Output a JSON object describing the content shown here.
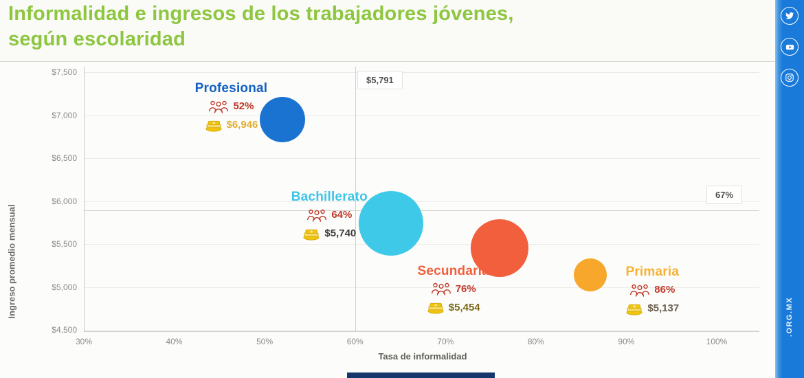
{
  "page": {
    "title_line1": "Informalidad e ingresos de los trabajadores jóvenes,",
    "title_line2": "según escolaridad",
    "title_color": "#8dc63f"
  },
  "chart_data": {
    "type": "scatter",
    "title": "Informalidad e ingresos de los trabajadores jóvenes, según escolaridad",
    "xlabel": "Tasa de informalidad",
    "ylabel": "Ingreso promedio mensual",
    "xlim": [
      30,
      100
    ],
    "ylim": [
      4500,
      7500
    ],
    "x_ticks": [
      "30%",
      "40%",
      "50%",
      "60%",
      "70%",
      "80%",
      "90%",
      "100%"
    ],
    "y_ticks": [
      "$7,500",
      "$7,000",
      "$6,500",
      "$6,000",
      "$5,500",
      "$5,000",
      "$4,500"
    ],
    "grid": "horizontal",
    "legend": "none",
    "series": [
      {
        "name": "Profesional",
        "informality_pct": 52,
        "pct_label": "52%",
        "income": 6946,
        "income_label": "$6,946",
        "bubble_color": "#1a73d1",
        "label_color": "#1261c4",
        "income_label_color": "#e2ae2a",
        "bubble_radius": 33
      },
      {
        "name": "Bachillerato",
        "informality_pct": 64,
        "pct_label": "64%",
        "income": 5740,
        "income_label": "$5,740",
        "bubble_color": "#3ec9e9",
        "label_color": "#3cc5e8",
        "income_label_color": "#3f3f3f",
        "bubble_radius": 47
      },
      {
        "name": "Secundaria",
        "informality_pct": 76,
        "pct_label": "76%",
        "income": 5454,
        "income_label": "$5,454",
        "bubble_color": "#f15f3d",
        "label_color": "#f15f3d",
        "income_label_color": "#7c6a17",
        "bubble_radius": 42
      },
      {
        "name": "Primaria",
        "informality_pct": 86,
        "pct_label": "86%",
        "income": 5137,
        "income_label": "$5,137",
        "bubble_color": "#f7a82c",
        "label_color": "#f8b133",
        "income_label_color": "#6b5e4f",
        "bubble_radius": 24
      }
    ],
    "annotations": [
      {
        "label": "$5,791",
        "attached_to": "vertical-reference-line"
      },
      {
        "label": "67%",
        "attached_to": "horizontal-reference-line"
      }
    ],
    "shared_colors": {
      "percent_text": "#c0392b",
      "people_icon": "#c0392b",
      "money_icon": "#f1c40f"
    },
    "row_icons": {
      "percent_row": "people-group-icon",
      "income_row": "money-stack-icon"
    }
  },
  "sidebar": {
    "background": "#1a7ad9",
    "icons": [
      "twitter-icon",
      "youtube-icon",
      "instagram-icon"
    ],
    "watermark": ".ORG.MX"
  }
}
